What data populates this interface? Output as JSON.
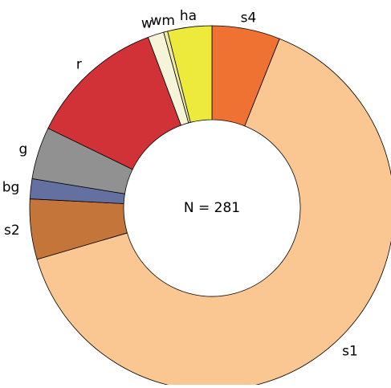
{
  "chart_data": {
    "type": "donut",
    "center_label": "N = 281",
    "categories": [
      "s4",
      "s1",
      "s2",
      "bg",
      "g",
      "r",
      "w",
      "wm",
      "ha"
    ],
    "values": [
      17,
      181,
      15,
      5,
      13,
      34,
      4,
      1,
      11
    ],
    "colors": [
      "#f07232",
      "#fac792",
      "#c4763a",
      "#6470a0",
      "#919191",
      "#d13238",
      "#f6f4d8",
      "#efeca0",
      "#eeea3c"
    ]
  }
}
